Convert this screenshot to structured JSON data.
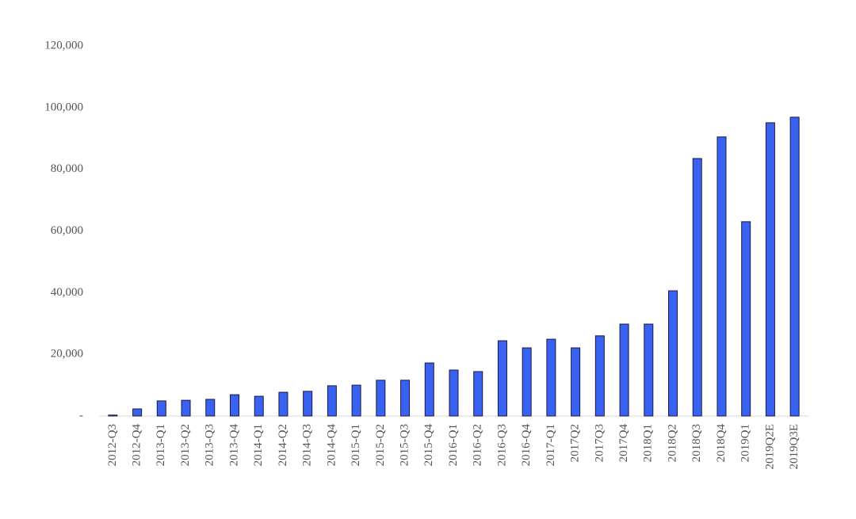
{
  "chart_data": {
    "type": "bar",
    "categories": [
      "2012-Q3",
      "2012-Q4",
      "2013-Q1",
      "2013-Q2",
      "2013-Q3",
      "2013-Q4",
      "2014-Q1",
      "2014-Q2",
      "2014-Q3",
      "2014-Q4",
      "2015-Q1",
      "2015-Q2",
      "2015-Q3",
      "2015-Q4",
      "2016-Q1",
      "2016-Q2",
      "2016-Q3",
      "2016-Q4",
      "2017-Q1",
      "2017Q2",
      "2017Q3",
      "2017Q4",
      "2018Q1",
      "2018Q2",
      "2018Q3",
      "2018Q4",
      "2019Q1",
      "2019Q2E",
      "2019Q3E"
    ],
    "values": [
      300,
      2300,
      4900,
      5100,
      5400,
      6900,
      6400,
      7700,
      8000,
      9800,
      10000,
      11600,
      11600,
      17200,
      14900,
      14400,
      24400,
      22100,
      24900,
      22100,
      26000,
      29800,
      29800,
      40600,
      83500,
      90500,
      63000,
      95100,
      96900
    ],
    "color": "#3a62f2",
    "ylim": [
      0,
      120000
    ],
    "yticks": [
      {
        "value": 0,
        "label": "-"
      },
      {
        "value": 20000,
        "label": "20,000"
      },
      {
        "value": 40000,
        "label": "40,000"
      },
      {
        "value": 60000,
        "label": "60,000"
      },
      {
        "value": 80000,
        "label": "80,000"
      },
      {
        "value": 100000,
        "label": "100,000"
      },
      {
        "value": 120000,
        "label": "120,000"
      }
    ],
    "grid": false
  }
}
